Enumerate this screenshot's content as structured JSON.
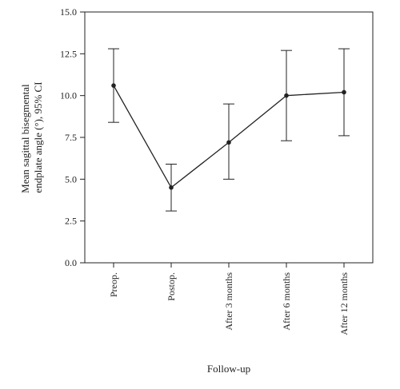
{
  "chart_data": {
    "type": "line",
    "title": "",
    "xlabel": "Follow-up",
    "ylabel_lines": [
      "Mean sagittal bisegmental",
      "endplate angle (°), 95% CI"
    ],
    "categories": [
      "Preop.",
      "Postop.",
      "After 3 months",
      "After 6 months",
      "After 12 months"
    ],
    "series": [
      {
        "values": [
          10.6,
          4.5,
          7.2,
          10.0,
          10.2
        ],
        "ci_lower": [
          8.4,
          3.1,
          5.0,
          7.3,
          7.6
        ],
        "ci_upper": [
          12.8,
          5.9,
          9.5,
          12.7,
          12.8
        ]
      }
    ],
    "ylim": [
      0,
      15
    ],
    "yticks": [
      "0.0",
      "2.5",
      "5.0",
      "7.5",
      "10.0",
      "12.5",
      "15.0"
    ],
    "grid": false,
    "legend": "none"
  }
}
